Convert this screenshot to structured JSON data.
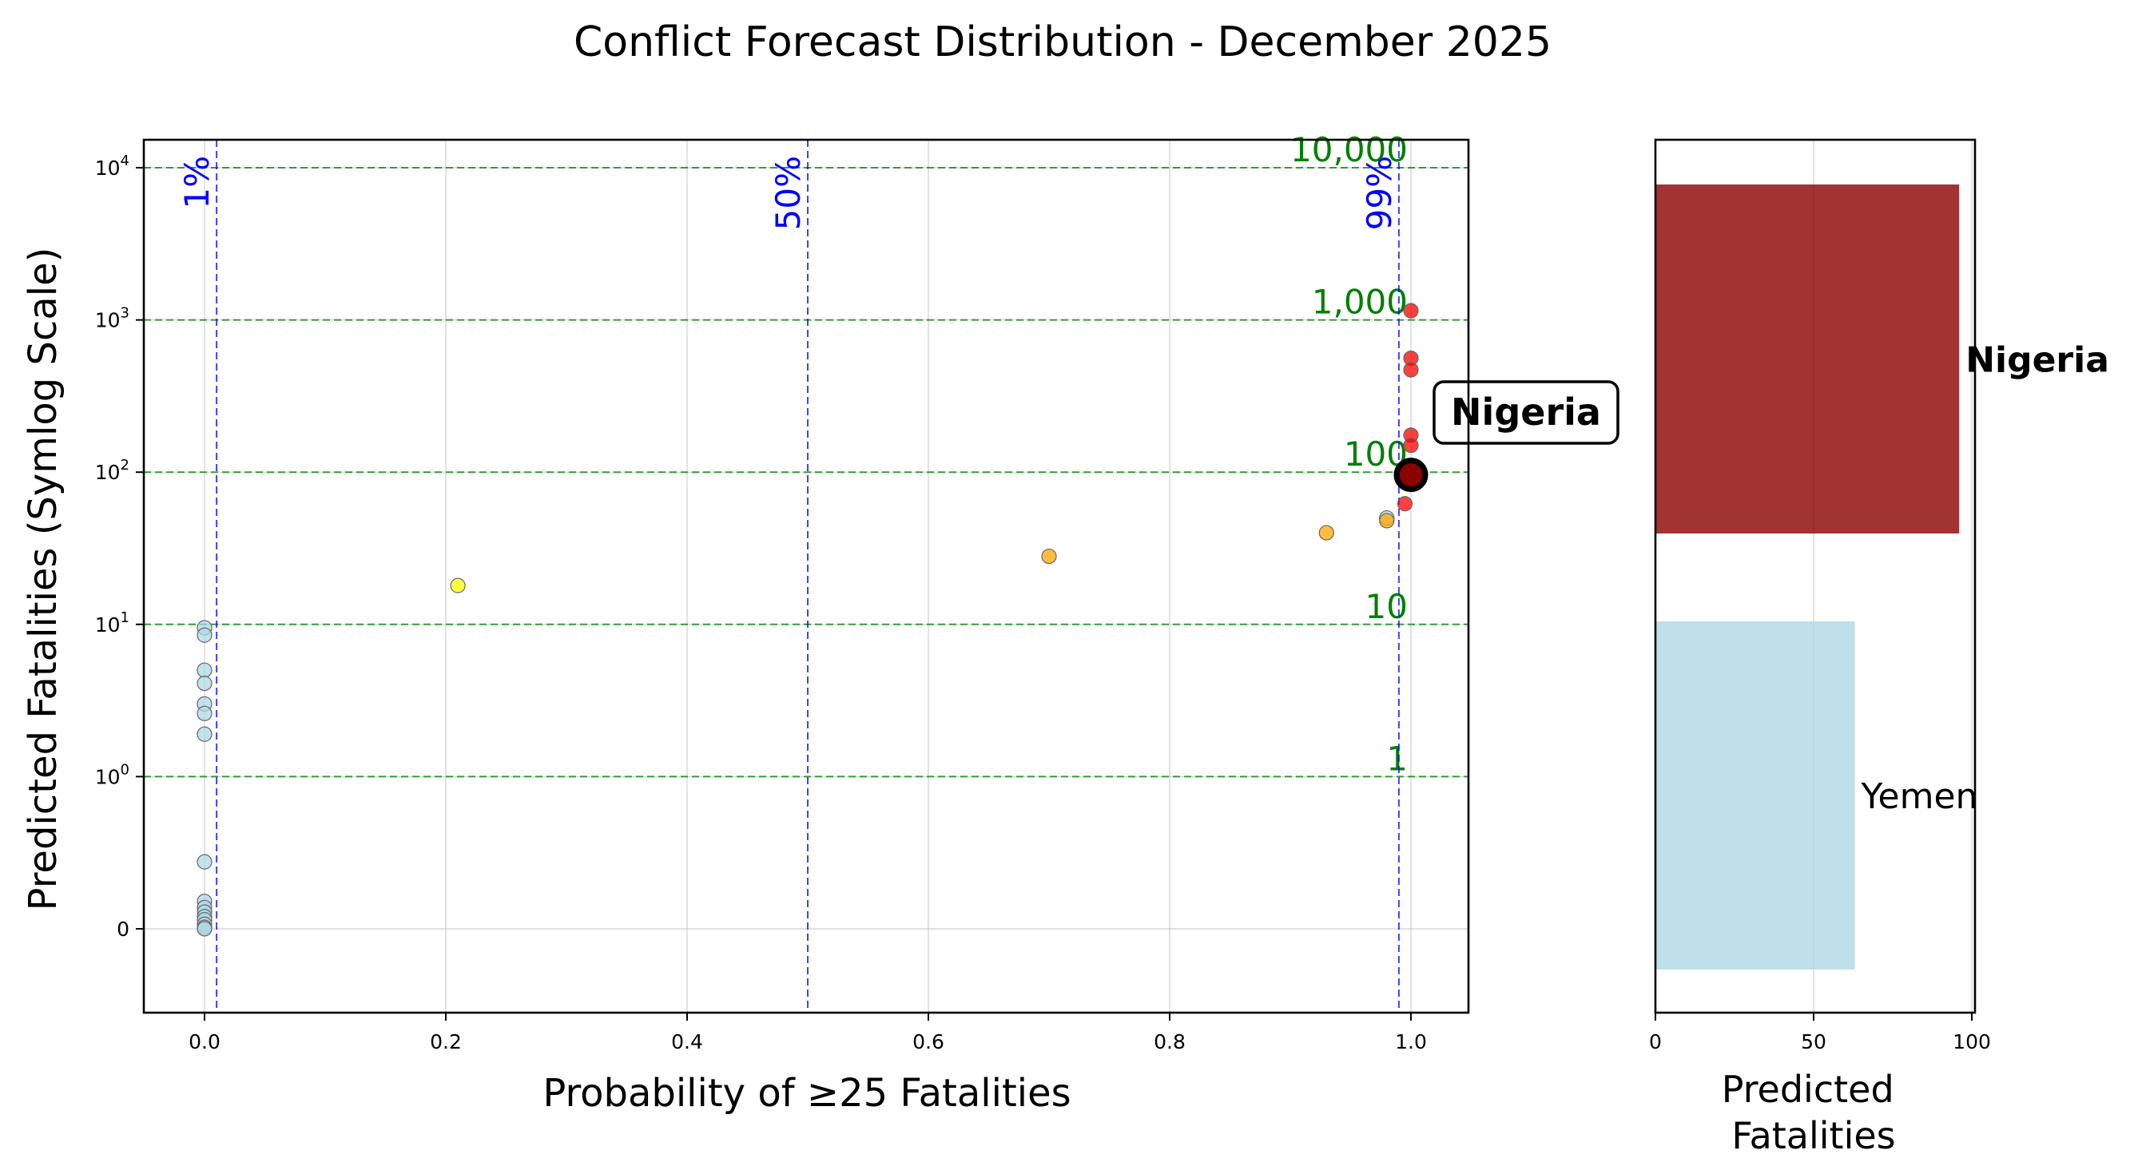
{
  "chart_data": [
    {
      "type": "scatter",
      "title": "Conflict Forecast Distribution - December 2025",
      "xlabel": "Probability of ≥25 Fatalities",
      "ylabel": "Predicted Fatalities (Symlog Scale)",
      "xlim": [
        -0.05,
        1.05
      ],
      "ylim_scale": "symlog",
      "grid": true,
      "x_ticks": [
        "0.0",
        "0.2",
        "0.4",
        "0.6",
        "0.8",
        "1.0"
      ],
      "y_ticks": [
        {
          "value": 0,
          "base": "0",
          "exp": ""
        },
        {
          "value": 1,
          "base": "10",
          "exp": "0"
        },
        {
          "value": 10,
          "base": "10",
          "exp": "1"
        },
        {
          "value": 100,
          "base": "10",
          "exp": "2"
        },
        {
          "value": 1000,
          "base": "10",
          "exp": "3"
        },
        {
          "value": 10000,
          "base": "10",
          "exp": "4"
        }
      ],
      "probability_lines": [
        {
          "x": 0.01,
          "label": "1%"
        },
        {
          "x": 0.5,
          "label": "50%"
        },
        {
          "x": 0.99,
          "label": "99%"
        }
      ],
      "fatality_lines": [
        {
          "y": 1,
          "label": "1"
        },
        {
          "y": 10,
          "label": "10"
        },
        {
          "y": 100,
          "label": "100"
        },
        {
          "y": 1000,
          "label": "1,000"
        },
        {
          "y": 10000,
          "label": "10,000"
        }
      ],
      "colors": {
        "low": "#add8e6",
        "yellow": "#ffff00",
        "orange": "#ffa500",
        "red": "#ff0000",
        "highlight": "#8b0000",
        "prob_line": "#0000ff",
        "fat_line": "#008000"
      },
      "points": [
        {
          "x": 0.0,
          "y": 9.5,
          "c": "low"
        },
        {
          "x": 0.0,
          "y": 8.5,
          "c": "low"
        },
        {
          "x": 0.0,
          "y": 5.0,
          "c": "low"
        },
        {
          "x": 0.0,
          "y": 4.1,
          "c": "low"
        },
        {
          "x": 0.0,
          "y": 3.0,
          "c": "low"
        },
        {
          "x": 0.0,
          "y": 2.6,
          "c": "low"
        },
        {
          "x": 0.0,
          "y": 1.9,
          "c": "low"
        },
        {
          "x": 0.0,
          "y": 0.44,
          "c": "low"
        },
        {
          "x": 0.0,
          "y": 0.18,
          "c": "low"
        },
        {
          "x": 0.0,
          "y": 0.14,
          "c": "low"
        },
        {
          "x": 0.0,
          "y": 0.11,
          "c": "low"
        },
        {
          "x": 0.0,
          "y": 0.08,
          "c": "low"
        },
        {
          "x": 0.0,
          "y": 0.06,
          "c": "low"
        },
        {
          "x": 0.0,
          "y": 0.03,
          "c": "low"
        },
        {
          "x": 0.0,
          "y": 0.01,
          "c": "low"
        },
        {
          "x": 0.0,
          "y": 0.0,
          "c": "low"
        },
        {
          "x": 0.21,
          "y": 18,
          "c": "yellow"
        },
        {
          "x": 0.7,
          "y": 28,
          "c": "orange"
        },
        {
          "x": 0.93,
          "y": 40,
          "c": "orange"
        },
        {
          "x": 0.98,
          "y": 50,
          "c": "low"
        },
        {
          "x": 0.98,
          "y": 48,
          "c": "orange"
        },
        {
          "x": 0.995,
          "y": 62,
          "c": "red"
        },
        {
          "x": 1.0,
          "y": 1150,
          "c": "red"
        },
        {
          "x": 1.0,
          "y": 560,
          "c": "red"
        },
        {
          "x": 1.0,
          "y": 470,
          "c": "red"
        },
        {
          "x": 1.0,
          "y": 175,
          "c": "red"
        },
        {
          "x": 1.0,
          "y": 150,
          "c": "red"
        }
      ],
      "highlight": {
        "name": "Nigeria",
        "x": 1.0,
        "y": 96
      }
    },
    {
      "type": "bar",
      "orientation": "horizontal",
      "xlabel": "Predicted\nFatalities",
      "xlim": [
        0,
        101
      ],
      "x_ticks": [
        "0",
        "50",
        "100"
      ],
      "categories": [
        "Yemen",
        "Nigeria"
      ],
      "values": [
        63,
        96
      ],
      "colors": [
        "#add8e6",
        "#8b0000"
      ],
      "highlight": "Nigeria"
    }
  ]
}
